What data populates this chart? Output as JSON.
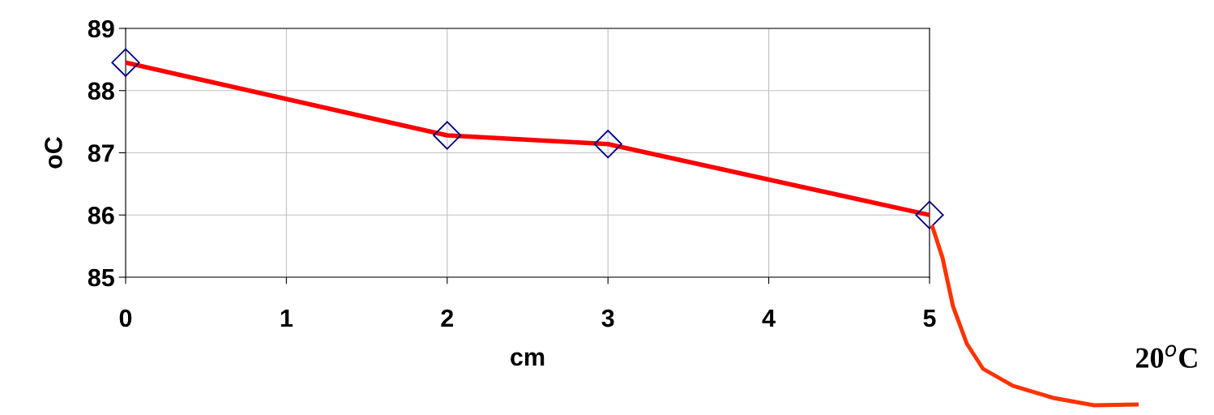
{
  "chart_data": {
    "type": "line",
    "xlabel": "cm",
    "ylabel": "oC",
    "x": [
      0,
      2,
      3,
      5
    ],
    "series": [
      {
        "color": "#ff0000",
        "values": [
          88.45,
          87.28,
          87.14,
          86.0
        ]
      }
    ],
    "xlim": [
      0,
      5
    ],
    "xticks": [
      0,
      1,
      2,
      3,
      4,
      5
    ],
    "ylim": [
      85,
      89
    ],
    "yticks": [
      85,
      86,
      87,
      88,
      89
    ],
    "grid": true,
    "marker": "diamond",
    "line_style": "solid",
    "annotations": [
      "20$^{o}$C"
    ]
  }
}
